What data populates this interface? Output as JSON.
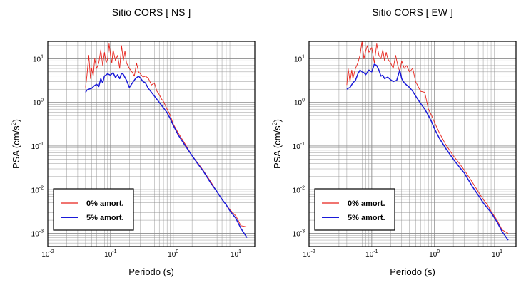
{
  "chart_data": [
    {
      "type": "line",
      "title": "Sitio CORS [ NS ]",
      "xlabel": "Periodo (s)",
      "ylabel": "PSA (cm/s",
      "ylabel_sup": "2",
      "ylabel_close": ")",
      "x_scale": "log",
      "y_scale": "log",
      "xlim": [
        0.01,
        20
      ],
      "ylim": [
        0.0005,
        25
      ],
      "x_ticks": [
        {
          "value": 0.01,
          "base": "10",
          "exp": "-2"
        },
        {
          "value": 0.1,
          "base": "10",
          "exp": "-1"
        },
        {
          "value": 1,
          "base": "10",
          "exp": "0"
        },
        {
          "value": 10,
          "base": "10",
          "exp": "1"
        }
      ],
      "y_ticks": [
        {
          "value": 0.001,
          "base": "10",
          "exp": "-3"
        },
        {
          "value": 0.01,
          "base": "10",
          "exp": "-2"
        },
        {
          "value": 0.1,
          "base": "10",
          "exp": "-1"
        },
        {
          "value": 1,
          "base": "10",
          "exp": "0"
        },
        {
          "value": 10,
          "base": "10",
          "exp": "1"
        }
      ],
      "grid": true,
      "legend_position": "bottom-left",
      "series": [
        {
          "name": "0% amort.",
          "color": "#e8221b",
          "x": [
            0.04,
            0.042,
            0.045,
            0.048,
            0.05,
            0.053,
            0.056,
            0.06,
            0.065,
            0.07,
            0.075,
            0.08,
            0.085,
            0.09,
            0.095,
            0.1,
            0.105,
            0.11,
            0.12,
            0.13,
            0.14,
            0.15,
            0.16,
            0.17,
            0.18,
            0.2,
            0.22,
            0.24,
            0.26,
            0.28,
            0.3,
            0.33,
            0.36,
            0.4,
            0.45,
            0.5,
            0.55,
            0.6,
            0.65,
            0.7,
            0.8,
            0.9,
            1.0,
            1.2,
            1.5,
            2,
            2.5,
            3,
            4,
            5,
            6,
            7,
            8,
            10,
            12,
            15
          ],
          "y": [
            2.2,
            4,
            12,
            3.5,
            6,
            4,
            10,
            6,
            8,
            16,
            7,
            14,
            8,
            10,
            22,
            12,
            8,
            16,
            9,
            12,
            6,
            20,
            9,
            15,
            8,
            6,
            5,
            4,
            8,
            5,
            4.5,
            3.8,
            4,
            3.6,
            2.5,
            2.8,
            1.8,
            1.5,
            1.2,
            1.05,
            0.7,
            0.5,
            0.32,
            0.2,
            0.12,
            0.06,
            0.04,
            0.028,
            0.015,
            0.009,
            0.006,
            0.0045,
            0.0035,
            0.0025,
            0.0015,
            0.0014
          ]
        },
        {
          "name": "5% amort.",
          "color": "#1a1ad8",
          "x": [
            0.04,
            0.042,
            0.045,
            0.05,
            0.055,
            0.06,
            0.065,
            0.07,
            0.075,
            0.08,
            0.09,
            0.1,
            0.11,
            0.12,
            0.13,
            0.14,
            0.15,
            0.16,
            0.18,
            0.2,
            0.22,
            0.25,
            0.28,
            0.3,
            0.33,
            0.36,
            0.4,
            0.45,
            0.5,
            0.6,
            0.7,
            0.8,
            0.9,
            1.0,
            1.2,
            1.5,
            2,
            2.5,
            3,
            4,
            5,
            6,
            7,
            8,
            10,
            12,
            15
          ],
          "y": [
            1.7,
            1.9,
            2.0,
            2.1,
            2.4,
            2.6,
            2.3,
            3.5,
            2.8,
            4,
            4.5,
            4.2,
            4.8,
            3.7,
            4.3,
            3.5,
            4.6,
            4.4,
            3.2,
            2.2,
            2.7,
            3.5,
            4.0,
            3.6,
            3.0,
            2.8,
            2.1,
            1.7,
            1.4,
            1.0,
            0.75,
            0.58,
            0.42,
            0.3,
            0.18,
            0.11,
            0.06,
            0.038,
            0.027,
            0.014,
            0.009,
            0.006,
            0.0045,
            0.0033,
            0.0022,
            0.0013,
            0.0008
          ]
        }
      ]
    },
    {
      "type": "line",
      "title": "Sitio CORS [ EW ]",
      "xlabel": "Periodo (s)",
      "ylabel": "PSA (cm/s",
      "ylabel_sup": "2",
      "ylabel_close": ")",
      "x_scale": "log",
      "y_scale": "log",
      "xlim": [
        0.01,
        20
      ],
      "ylim": [
        0.0005,
        25
      ],
      "x_ticks": [
        {
          "value": 0.01,
          "base": "10",
          "exp": "-2"
        },
        {
          "value": 0.1,
          "base": "10",
          "exp": "-1"
        },
        {
          "value": 1,
          "base": "10",
          "exp": "0"
        },
        {
          "value": 10,
          "base": "10",
          "exp": "1"
        }
      ],
      "y_ticks": [
        {
          "value": 0.001,
          "base": "10",
          "exp": "-3"
        },
        {
          "value": 0.01,
          "base": "10",
          "exp": "-2"
        },
        {
          "value": 0.1,
          "base": "10",
          "exp": "-1"
        },
        {
          "value": 1,
          "base": "10",
          "exp": "0"
        },
        {
          "value": 10,
          "base": "10",
          "exp": "1"
        }
      ],
      "grid": true,
      "legend_position": "bottom-left",
      "series": [
        {
          "name": "0% amort.",
          "color": "#e8221b",
          "x": [
            0.04,
            0.042,
            0.045,
            0.048,
            0.05,
            0.055,
            0.06,
            0.065,
            0.07,
            0.075,
            0.08,
            0.085,
            0.09,
            0.1,
            0.11,
            0.12,
            0.13,
            0.14,
            0.15,
            0.16,
            0.17,
            0.18,
            0.2,
            0.22,
            0.24,
            0.26,
            0.28,
            0.3,
            0.33,
            0.36,
            0.4,
            0.45,
            0.5,
            0.6,
            0.7,
            0.8,
            0.9,
            1.0,
            1.2,
            1.5,
            2,
            2.5,
            3,
            4,
            5,
            6,
            7,
            8,
            10,
            12,
            15
          ],
          "y": [
            2.5,
            6,
            3,
            5.5,
            3.5,
            6,
            8,
            12,
            25,
            10,
            15,
            20,
            14,
            18,
            8,
            22,
            12,
            10,
            16,
            9,
            14,
            10,
            8,
            6,
            12,
            7,
            5,
            9,
            6,
            7,
            5,
            6,
            3,
            1.8,
            1.7,
            0.7,
            0.5,
            0.35,
            0.2,
            0.11,
            0.06,
            0.04,
            0.028,
            0.015,
            0.009,
            0.006,
            0.0045,
            0.0032,
            0.002,
            0.0012,
            0.001
          ]
        },
        {
          "name": "5% amort.",
          "color": "#1a1ad8",
          "x": [
            0.04,
            0.042,
            0.045,
            0.05,
            0.055,
            0.06,
            0.065,
            0.07,
            0.075,
            0.08,
            0.09,
            0.1,
            0.11,
            0.12,
            0.13,
            0.14,
            0.15,
            0.16,
            0.18,
            0.2,
            0.22,
            0.25,
            0.28,
            0.3,
            0.33,
            0.36,
            0.4,
            0.45,
            0.5,
            0.6,
            0.7,
            0.8,
            0.9,
            1.0,
            1.2,
            1.5,
            2,
            2.5,
            3,
            4,
            5,
            6,
            7,
            8,
            10,
            12,
            15
          ],
          "y": [
            2.0,
            2.1,
            2.2,
            2.8,
            3.2,
            4.5,
            5.5,
            5.0,
            4.8,
            4.3,
            5.5,
            5.0,
            7.5,
            7.0,
            5.5,
            4.0,
            4.2,
            3.5,
            3.8,
            3.3,
            3.0,
            3.2,
            5.5,
            3.5,
            2.8,
            2.5,
            2.2,
            1.8,
            1.4,
            0.95,
            0.7,
            0.5,
            0.36,
            0.25,
            0.15,
            0.09,
            0.05,
            0.033,
            0.024,
            0.012,
            0.0075,
            0.005,
            0.0038,
            0.003,
            0.0018,
            0.0011,
            0.0007
          ]
        }
      ]
    }
  ]
}
